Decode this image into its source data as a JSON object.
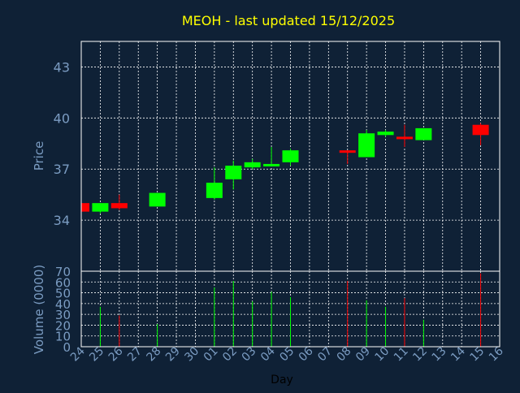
{
  "colors": {
    "background": "#0f2136",
    "frame": "#ffffff",
    "grid": "#ffffff",
    "title": "#ffff00",
    "axis_text": "#7b9cc2",
    "day_label": "#000000",
    "up": "#00ff00",
    "down": "#ff0000"
  },
  "chart_data": {
    "type": "candlestick",
    "title": "MEOH - last updated 15/12/2025",
    "xlabel": "Day",
    "x_ticks": [
      "24",
      "25",
      "26",
      "27",
      "28",
      "29",
      "30",
      "01",
      "02",
      "03",
      "04",
      "05",
      "06",
      "07",
      "08",
      "09",
      "10",
      "11",
      "12",
      "13",
      "14",
      "15",
      "16"
    ],
    "grid": true,
    "price_panel": {
      "ylabel": "Price",
      "ylim": [
        31.0,
        44.5
      ],
      "y_ticks": [
        34,
        37,
        40,
        43
      ],
      "candles": [
        {
          "day": "24",
          "open": 35.0,
          "high": 35.0,
          "low": 34.4,
          "close": 34.5,
          "dir": "down"
        },
        {
          "day": "25",
          "open": 34.5,
          "high": 35.0,
          "low": 34.4,
          "close": 35.0,
          "dir": "up"
        },
        {
          "day": "26",
          "open": 35.0,
          "high": 35.5,
          "low": 34.6,
          "close": 34.7,
          "dir": "down"
        },
        {
          "day": "28",
          "open": 34.8,
          "high": 35.6,
          "low": 34.8,
          "close": 35.6,
          "dir": "up"
        },
        {
          "day": "01",
          "open": 35.3,
          "high": 37.1,
          "low": 35.2,
          "close": 36.2,
          "dir": "up"
        },
        {
          "day": "02",
          "open": 36.4,
          "high": 37.5,
          "low": 35.8,
          "close": 37.2,
          "dir": "up"
        },
        {
          "day": "03",
          "open": 37.1,
          "high": 37.6,
          "low": 37.0,
          "close": 37.4,
          "dir": "up"
        },
        {
          "day": "04",
          "open": 37.2,
          "high": 38.3,
          "low": 37.2,
          "close": 37.3,
          "dir": "up"
        },
        {
          "day": "05",
          "open": 37.4,
          "high": 38.2,
          "low": 37.2,
          "close": 38.1,
          "dir": "up"
        },
        {
          "day": "08",
          "open": 38.1,
          "high": 38.1,
          "low": 37.3,
          "close": 38.0,
          "dir": "down"
        },
        {
          "day": "09",
          "open": 37.7,
          "high": 39.3,
          "low": 37.7,
          "close": 39.1,
          "dir": "up"
        },
        {
          "day": "10",
          "open": 39.0,
          "high": 39.3,
          "low": 38.9,
          "close": 39.2,
          "dir": "up"
        },
        {
          "day": "11",
          "open": 38.9,
          "high": 39.6,
          "low": 38.3,
          "close": 38.8,
          "dir": "down"
        },
        {
          "day": "12",
          "open": 38.7,
          "high": 39.4,
          "low": 38.7,
          "close": 39.4,
          "dir": "up"
        },
        {
          "day": "15",
          "open": 39.6,
          "high": 39.7,
          "low": 38.4,
          "close": 39.0,
          "dir": "down"
        }
      ]
    },
    "volume_panel": {
      "ylabel": "Volume (0000)",
      "ylim": [
        0,
        70
      ],
      "y_ticks": [
        0,
        10,
        20,
        30,
        40,
        50,
        60,
        70
      ],
      "bars": [
        {
          "day": "25",
          "value": 37,
          "dir": "up"
        },
        {
          "day": "26",
          "value": 29,
          "dir": "down"
        },
        {
          "day": "28",
          "value": 21,
          "dir": "up"
        },
        {
          "day": "01",
          "value": 55,
          "dir": "up"
        },
        {
          "day": "02",
          "value": 61,
          "dir": "up"
        },
        {
          "day": "03",
          "value": 42,
          "dir": "up"
        },
        {
          "day": "04",
          "value": 51,
          "dir": "up"
        },
        {
          "day": "05",
          "value": 46,
          "dir": "up"
        },
        {
          "day": "08",
          "value": 61,
          "dir": "down"
        },
        {
          "day": "09",
          "value": 43,
          "dir": "up"
        },
        {
          "day": "10",
          "value": 37,
          "dir": "up"
        },
        {
          "day": "11",
          "value": 45,
          "dir": "down"
        },
        {
          "day": "12",
          "value": 25,
          "dir": "up"
        },
        {
          "day": "15",
          "value": 68,
          "dir": "down"
        }
      ]
    }
  }
}
